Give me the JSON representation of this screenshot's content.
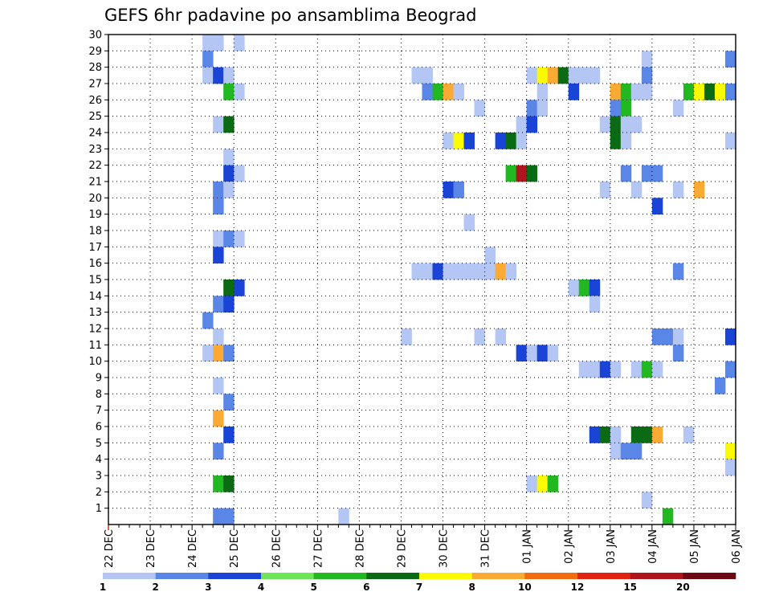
{
  "chart_data": {
    "type": "heatmap",
    "title": "GEFS 6hr padavine po ansamblima Beograd",
    "xlabel": "",
    "ylabel": "",
    "x_ticks": [
      "22 DEC",
      "23 DEC",
      "24 DEC",
      "25 DEC",
      "26 DEC",
      "27 DEC",
      "28 DEC",
      "29 DEC",
      "30 DEC",
      "31 DEC",
      "01 JAN",
      "02 JAN",
      "03 JAN",
      "04 JAN",
      "05 JAN",
      "06 JAN"
    ],
    "y_ticks": [
      "1",
      "2",
      "3",
      "4",
      "5",
      "6",
      "7",
      "8",
      "9",
      "10",
      "11",
      "12",
      "13",
      "14",
      "15",
      "16",
      "17",
      "18",
      "19",
      "20",
      "21",
      "22",
      "23",
      "24",
      "25",
      "26",
      "27",
      "28",
      "29",
      "30"
    ],
    "x_unit": "6-hour step from 22 DEC 00Z (4 steps per day)",
    "y_range": [
      0,
      30
    ],
    "x_range": [
      0,
      60
    ],
    "grid": true,
    "legend": "bottom",
    "colorbar": {
      "labels": [
        "1",
        "2",
        "3",
        "4",
        "5",
        "6",
        "7",
        "8",
        "10",
        "12",
        "15",
        "20"
      ],
      "colors": [
        "#b4c6f4",
        "#5a86e8",
        "#1a44d6",
        "#6ee658",
        "#22b822",
        "#0b6b14",
        "#fafa00",
        "#fbaa33",
        "#f26c0d",
        "#e12312",
        "#b0141c",
        "#6b0a10"
      ]
    },
    "cells": [
      [
        9,
        30,
        1
      ],
      [
        10,
        30,
        1
      ],
      [
        12,
        30,
        1
      ],
      [
        9,
        29,
        2
      ],
      [
        51,
        29,
        1
      ],
      [
        59,
        29,
        2
      ],
      [
        9,
        28,
        1
      ],
      [
        10,
        28,
        3
      ],
      [
        11,
        28,
        1
      ],
      [
        29,
        28,
        1
      ],
      [
        30,
        28,
        1
      ],
      [
        40,
        28,
        1
      ],
      [
        41,
        28,
        7
      ],
      [
        42,
        28,
        8
      ],
      [
        43,
        28,
        6
      ],
      [
        44,
        28,
        1
      ],
      [
        45,
        28,
        1
      ],
      [
        46,
        28,
        1
      ],
      [
        51,
        28,
        2
      ],
      [
        11,
        27,
        5
      ],
      [
        12,
        27,
        1
      ],
      [
        30,
        27,
        2
      ],
      [
        31,
        27,
        5
      ],
      [
        32,
        27,
        8
      ],
      [
        33,
        27,
        1
      ],
      [
        41,
        27,
        1
      ],
      [
        44,
        27,
        3
      ],
      [
        48,
        27,
        8
      ],
      [
        49,
        27,
        5
      ],
      [
        50,
        27,
        1
      ],
      [
        51,
        27,
        1
      ],
      [
        55,
        27,
        5
      ],
      [
        56,
        27,
        7
      ],
      [
        57,
        27,
        6
      ],
      [
        58,
        27,
        7
      ],
      [
        59,
        27,
        2
      ],
      [
        35,
        26,
        1
      ],
      [
        40,
        26,
        2
      ],
      [
        41,
        26,
        1
      ],
      [
        48,
        26,
        2
      ],
      [
        49,
        26,
        5
      ],
      [
        54,
        26,
        1
      ],
      [
        10,
        25,
        1
      ],
      [
        11,
        25,
        6
      ],
      [
        39,
        25,
        1
      ],
      [
        40,
        25,
        3
      ],
      [
        47,
        25,
        1
      ],
      [
        48,
        25,
        6
      ],
      [
        49,
        25,
        1
      ],
      [
        50,
        25,
        1
      ],
      [
        32,
        24,
        1
      ],
      [
        33,
        24,
        7
      ],
      [
        34,
        24,
        3
      ],
      [
        37,
        24,
        3
      ],
      [
        38,
        24,
        6
      ],
      [
        39,
        24,
        1
      ],
      [
        48,
        24,
        6
      ],
      [
        49,
        24,
        1
      ],
      [
        59,
        24,
        1
      ],
      [
        11,
        23,
        1
      ],
      [
        11,
        22,
        3
      ],
      [
        12,
        22,
        1
      ],
      [
        38,
        22,
        5
      ],
      [
        39,
        22,
        11
      ],
      [
        40,
        22,
        6
      ],
      [
        49,
        22,
        2
      ],
      [
        51,
        22,
        2
      ],
      [
        52,
        22,
        2
      ],
      [
        10,
        21,
        2
      ],
      [
        11,
        21,
        1
      ],
      [
        32,
        21,
        3
      ],
      [
        33,
        21,
        2
      ],
      [
        47,
        21,
        1
      ],
      [
        50,
        21,
        1
      ],
      [
        54,
        21,
        1
      ],
      [
        56,
        21,
        8
      ],
      [
        10,
        20,
        2
      ],
      [
        52,
        20,
        3
      ],
      [
        34,
        19,
        1
      ],
      [
        10,
        18,
        1
      ],
      [
        11,
        18,
        2
      ],
      [
        12,
        18,
        1
      ],
      [
        10,
        17,
        3
      ],
      [
        36,
        17,
        1
      ],
      [
        29,
        16,
        1
      ],
      [
        30,
        16,
        1
      ],
      [
        31,
        16,
        3
      ],
      [
        32,
        16,
        1
      ],
      [
        33,
        16,
        1
      ],
      [
        34,
        16,
        1
      ],
      [
        35,
        16,
        1
      ],
      [
        36,
        16,
        1
      ],
      [
        37,
        16,
        8
      ],
      [
        38,
        16,
        1
      ],
      [
        54,
        16,
        2
      ],
      [
        11,
        15,
        6
      ],
      [
        12,
        15,
        3
      ],
      [
        44,
        15,
        1
      ],
      [
        45,
        15,
        5
      ],
      [
        46,
        15,
        3
      ],
      [
        10,
        14,
        2
      ],
      [
        11,
        14,
        3
      ],
      [
        46,
        14,
        1
      ],
      [
        9,
        13,
        2
      ],
      [
        10,
        12,
        1
      ],
      [
        28,
        12,
        1
      ],
      [
        35,
        12,
        1
      ],
      [
        37,
        12,
        1
      ],
      [
        52,
        12,
        2
      ],
      [
        53,
        12,
        2
      ],
      [
        54,
        12,
        1
      ],
      [
        59,
        12,
        3
      ],
      [
        9,
        11,
        1
      ],
      [
        10,
        11,
        8
      ],
      [
        11,
        11,
        2
      ],
      [
        39,
        11,
        3
      ],
      [
        40,
        11,
        1
      ],
      [
        41,
        11,
        3
      ],
      [
        42,
        11,
        1
      ],
      [
        54,
        11,
        2
      ],
      [
        45,
        10,
        1
      ],
      [
        46,
        10,
        1
      ],
      [
        47,
        10,
        3
      ],
      [
        48,
        10,
        1
      ],
      [
        50,
        10,
        1
      ],
      [
        51,
        10,
        5
      ],
      [
        52,
        10,
        1
      ],
      [
        59,
        10,
        2
      ],
      [
        10,
        9,
        1
      ],
      [
        58,
        9,
        2
      ],
      [
        11,
        8,
        2
      ],
      [
        10,
        7,
        8
      ],
      [
        11,
        6,
        3
      ],
      [
        46,
        6,
        3
      ],
      [
        47,
        6,
        6
      ],
      [
        48,
        6,
        1
      ],
      [
        50,
        6,
        6
      ],
      [
        51,
        6,
        6
      ],
      [
        52,
        6,
        8
      ],
      [
        55,
        6,
        1
      ],
      [
        10,
        5,
        2
      ],
      [
        48,
        5,
        1
      ],
      [
        49,
        5,
        2
      ],
      [
        50,
        5,
        2
      ],
      [
        59,
        5,
        7
      ],
      [
        59,
        4,
        1
      ],
      [
        10,
        3,
        5
      ],
      [
        11,
        3,
        6
      ],
      [
        40,
        3,
        1
      ],
      [
        41,
        3,
        7
      ],
      [
        42,
        3,
        5
      ],
      [
        51,
        2,
        1
      ],
      [
        10,
        1,
        2
      ],
      [
        11,
        1,
        2
      ],
      [
        22,
        1,
        1
      ],
      [
        53,
        1,
        5
      ]
    ]
  }
}
